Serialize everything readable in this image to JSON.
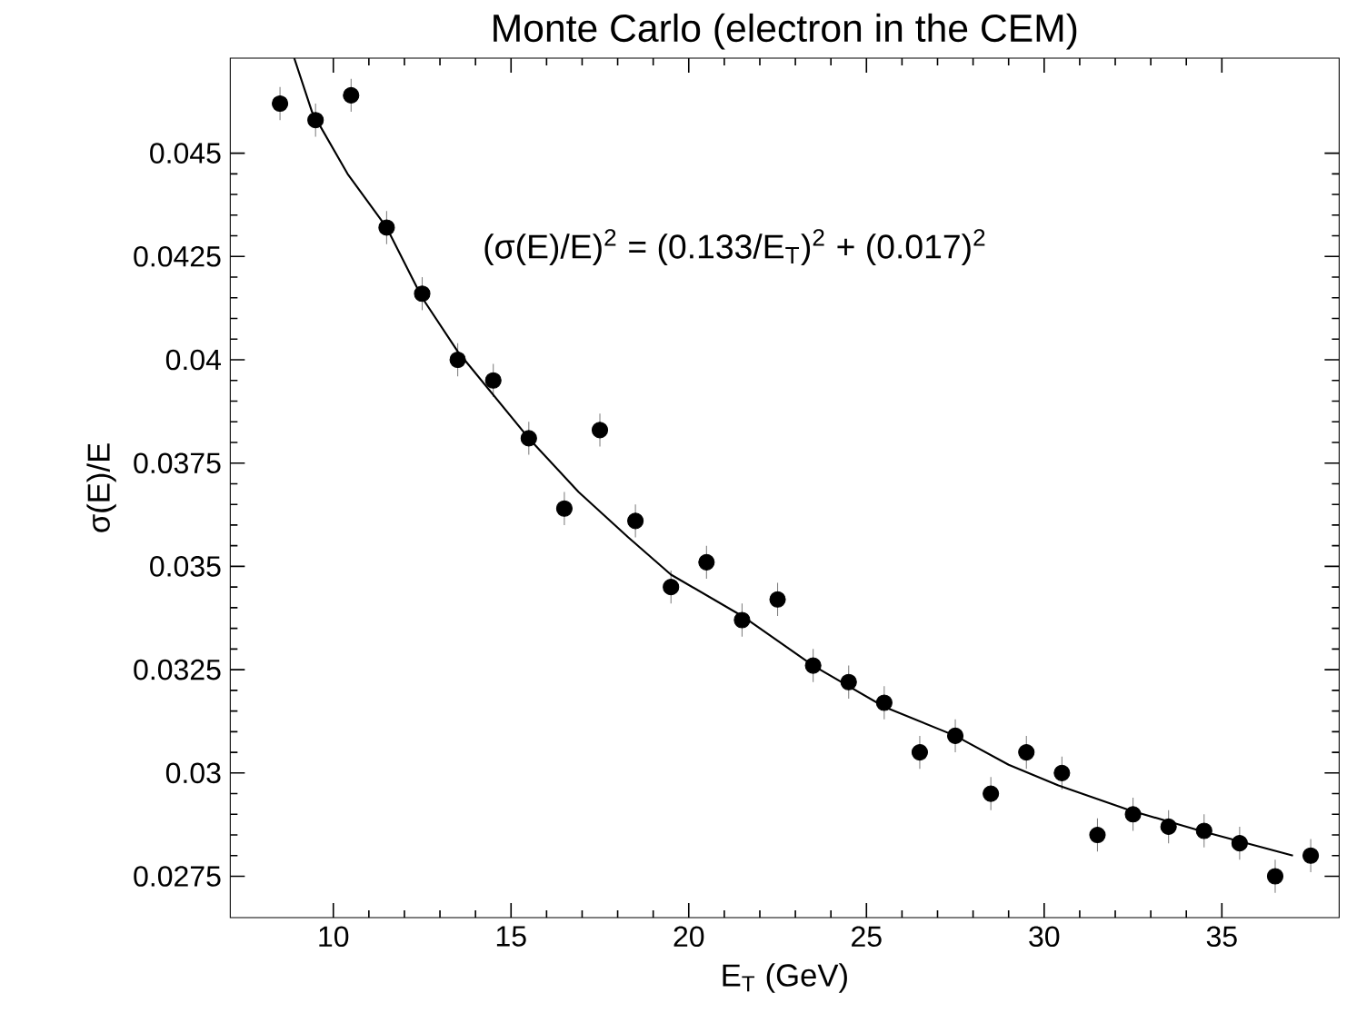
{
  "chart_data": {
    "type": "scatter",
    "title": "Monte Carlo  (electron in the CEM)",
    "xlabel": "E$_{T}$  (GeV)",
    "ylabel": "σ(E)/E",
    "annotations": [
      "(σ(E)/E)$^{2}$ = (0.133/E$_{T}$)$^{2}$ + (0.017)$^{2}$"
    ],
    "xlim": [
      7.1,
      38.3
    ],
    "ylim": [
      0.0265,
      0.0473
    ],
    "xticks": [
      10,
      15,
      20,
      25,
      30,
      35
    ],
    "yticks": [
      0.0275,
      0.03,
      0.0325,
      0.035,
      0.0375,
      0.04,
      0.0425,
      0.045
    ],
    "series": [
      {
        "color": "#000000",
        "marker": "circle",
        "x": [
          8.5,
          9.5,
          10.5,
          11.5,
          12.5,
          13.5,
          14.5,
          15.5,
          16.5,
          17.5,
          18.5,
          19.5,
          20.5,
          21.5,
          22.5,
          23.5,
          24.5,
          25.5,
          26.5,
          27.5,
          28.5,
          29.5,
          30.5,
          31.5,
          32.5,
          33.5,
          34.5,
          35.5,
          36.5,
          37.5
        ],
        "values": [
          0.0462,
          0.0458,
          0.0464,
          0.0432,
          0.0416,
          0.04,
          0.0395,
          0.0381,
          0.0364,
          0.0383,
          0.0361,
          0.0345,
          0.0351,
          0.0337,
          0.0342,
          0.0326,
          0.0322,
          0.0317,
          0.0305,
          0.0309,
          0.0295,
          0.0305,
          0.03,
          0.0285,
          0.029,
          0.0287,
          0.0286,
          0.0283,
          0.0275,
          0.028
        ],
        "errors": [
          0.0004,
          0.0004,
          0.0004,
          0.0004,
          0.0004,
          0.0004,
          0.0004,
          0.0004,
          0.0004,
          0.0004,
          0.0004,
          0.0004,
          0.0004,
          0.0004,
          0.0004,
          0.0004,
          0.0004,
          0.0004,
          0.0004,
          0.0004,
          0.0004,
          0.0004,
          0.0004,
          0.0004,
          0.0004,
          0.0004,
          0.0004,
          0.0004,
          0.0004,
          0.0004
        ]
      },
      {
        "type": "line",
        "color": "#000000",
        "marker": "none",
        "line_style": "solid",
        "x": [
          8.9,
          9.4,
          10.4,
          11.5,
          12.5,
          13.5,
          15.5,
          16.9,
          18.3,
          19.5,
          21.5,
          23.5,
          25.5,
          27.5,
          29.0,
          30.4,
          32.4,
          34.4,
          37.0
        ],
        "values": [
          0.0473,
          0.046,
          0.0445,
          0.0432,
          0.0415,
          0.0402,
          0.0381,
          0.0368,
          0.0357,
          0.0348,
          0.0338,
          0.0326,
          0.0316,
          0.0309,
          0.0302,
          0.0297,
          0.0291,
          0.0286,
          0.028
        ]
      }
    ]
  }
}
